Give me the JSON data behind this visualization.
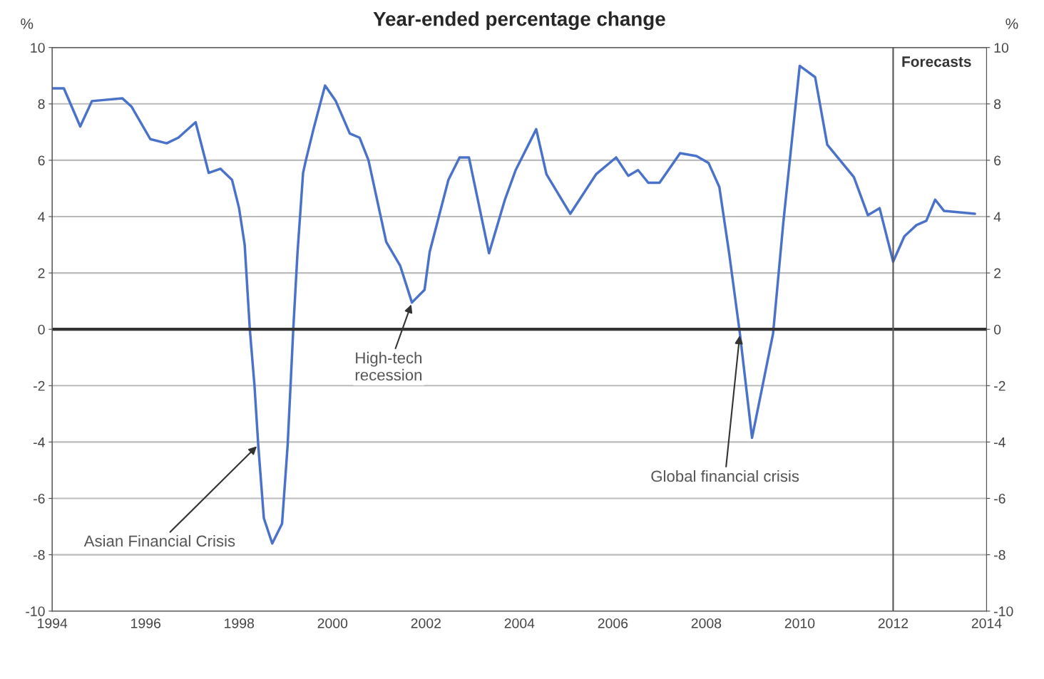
{
  "chart_data": {
    "type": "line",
    "title": "Year-ended percentage change",
    "ylabel": "%",
    "y2label": "%",
    "xlim": [
      1994,
      2014
    ],
    "xticks": [
      1994,
      1996,
      1998,
      2000,
      2002,
      2004,
      2006,
      2008,
      2010,
      2012,
      2014
    ],
    "ylim": [
      -10,
      10
    ],
    "yticks": [
      -10,
      -8,
      -6,
      -4,
      -2,
      0,
      2,
      4,
      6,
      8,
      10
    ],
    "y2lim": [
      -10,
      10
    ],
    "y2ticks": [
      -10,
      -8,
      -6,
      -4,
      -2,
      0,
      2,
      4,
      6,
      8,
      10
    ],
    "grid": "y",
    "legend": false,
    "marker": "none",
    "line_style": "solid",
    "ref_lines": [
      {
        "axis": "y",
        "value": 0,
        "label": null,
        "color": "#333333"
      },
      {
        "axis": "x",
        "value": 2012,
        "label": "Forecasts",
        "color": "#555555"
      }
    ],
    "annotations": [
      {
        "text": "Asian Financial Crisis",
        "x": 1998.41,
        "y": -4.1
      },
      {
        "text": "High-tech\nrecession",
        "x": 2001.7,
        "y": 0.95
      },
      {
        "text": "Global financial crisis",
        "x": 2008.72,
        "y": -0.15
      }
    ],
    "series": [
      {
        "color": "#4a72c8",
        "x": [
          1994.0,
          1994.25,
          1994.6,
          1994.85,
          1995.5,
          1995.7,
          1996.1,
          1996.45,
          1996.7,
          1997.07,
          1997.35,
          1997.6,
          1997.85,
          1998.0,
          1998.12,
          1998.23,
          1998.33,
          1998.41,
          1998.53,
          1998.71,
          1998.92,
          1999.04,
          1999.16,
          1999.25,
          1999.37,
          1999.43,
          1999.6,
          1999.84,
          2000.07,
          2000.37,
          2000.58,
          2000.77,
          2001.15,
          2001.45,
          2001.7,
          2001.97,
          2002.08,
          2002.48,
          2002.72,
          2002.92,
          2003.35,
          2003.69,
          2003.92,
          2004.36,
          2004.58,
          2005.09,
          2005.64,
          2006.07,
          2006.33,
          2006.54,
          2006.76,
          2007.0,
          2007.44,
          2007.79,
          2008.05,
          2008.28,
          2008.49,
          2008.72,
          2008.98,
          2009.43,
          2009.65,
          2010.0,
          2010.33,
          2010.59,
          2011.16,
          2011.46,
          2011.71,
          2012.0,
          2012.24,
          2012.5,
          2012.71,
          2012.9,
          2013.09,
          2013.75
        ],
        "values": [
          8.55,
          8.55,
          7.2,
          8.1,
          8.2,
          7.9,
          6.75,
          6.6,
          6.8,
          7.35,
          5.55,
          5.7,
          5.3,
          4.3,
          3.0,
          0,
          -2.0,
          -4.1,
          -6.7,
          -7.6,
          -6.9,
          -4.1,
          0,
          2.7,
          5.55,
          6.0,
          7.15,
          8.65,
          8.1,
          6.95,
          6.8,
          6.0,
          3.1,
          2.25,
          0.95,
          1.4,
          2.75,
          5.3,
          6.1,
          6.1,
          2.7,
          4.6,
          5.65,
          7.1,
          5.5,
          4.1,
          5.5,
          6.1,
          5.45,
          5.65,
          5.2,
          5.2,
          6.25,
          6.15,
          5.9,
          5.05,
          2.7,
          -0.15,
          -3.85,
          -0.15,
          3.8,
          9.35,
          8.95,
          6.55,
          5.4,
          4.05,
          4.3,
          2.4,
          3.3,
          3.7,
          3.85,
          4.6,
          4.2,
          4.1
        ]
      }
    ]
  }
}
